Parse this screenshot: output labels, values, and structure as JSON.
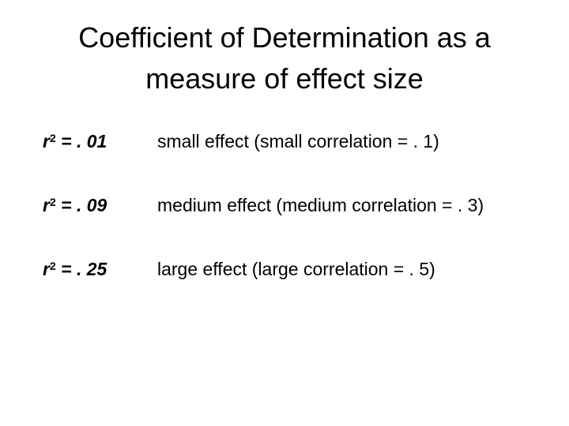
{
  "slide": {
    "title_line_1": "Coefficient of Determination as a",
    "title_line_2": "measure of effect size",
    "rows": [
      {
        "var": "r",
        "exponent": "2",
        "value": " = . 01",
        "description": "small effect (small correlation = . 1)"
      },
      {
        "var": "r",
        "exponent": "2",
        "value": " = . 09",
        "description": "medium effect (medium correlation = . 3)"
      },
      {
        "var": "r",
        "exponent": "2",
        "value": " = . 25",
        "description": "large effect (large correlation = . 5)"
      }
    ]
  }
}
